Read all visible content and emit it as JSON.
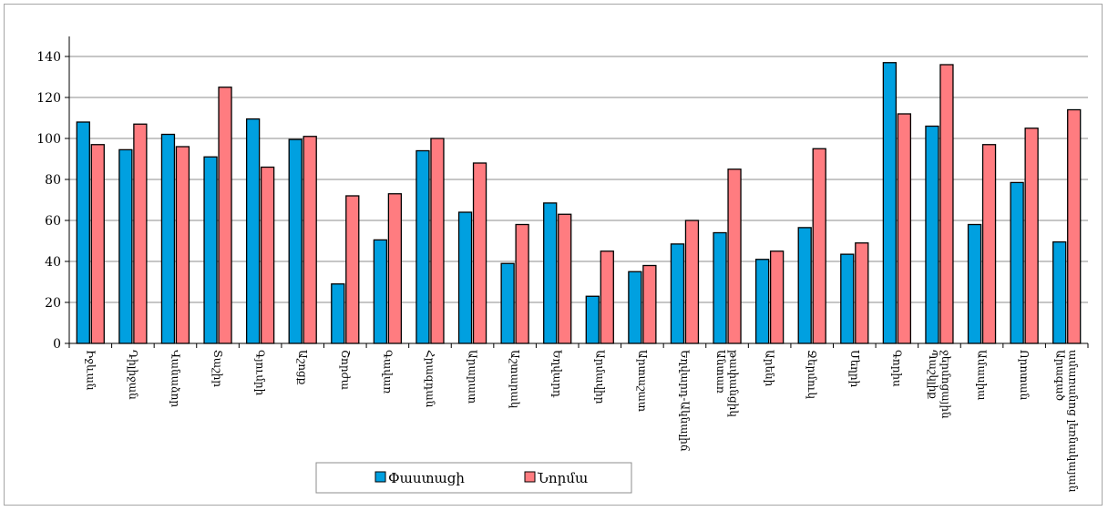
{
  "chart_data": {
    "type": "bar",
    "title": "",
    "xlabel": "",
    "ylabel": "",
    "ylim": [
      0,
      140
    ],
    "yticks": [
      0,
      20,
      40,
      60,
      80,
      100,
      120,
      140
    ],
    "grid": true,
    "legend_position": "bottom",
    "categories": [
      "Իջևան",
      "Դիլիջան",
      "Վանաձոր",
      "Տաշիր",
      "Գյումրի",
      "Աշոցք",
      "Շորժա",
      "Գավառ",
      "Հրազդան",
      "Արարատ",
      "Աշտարակ",
      "Եղվարդ",
      "Արմավիր",
      "Արտաշատ",
      "Եղվարդ-Ակնալիճ",
      "Անտառ թափանցիկ",
      "Արենի",
      "Ջերմուկ",
      "Մեղրի",
      "Գորիս",
      "Պաշկլիք ջերմոցային",
      "Ամասիա",
      "Որոտան",
      "Արագած ամառանոց լեռնակայան"
    ],
    "series": [
      {
        "name": "Փաստացի",
        "color": "#00a0e0",
        "values": [
          108,
          94.5,
          102,
          91,
          109.5,
          99.5,
          29,
          50.5,
          94,
          64,
          39,
          68.5,
          23,
          35,
          48.5,
          54,
          41,
          56.5,
          43.5,
          137,
          106,
          58,
          78.5,
          49.5
        ]
      },
      {
        "name": "Նորմա",
        "color": "#ff7c80",
        "values": [
          97,
          107,
          96,
          125,
          86,
          101,
          72,
          73,
          100,
          88,
          58,
          63,
          45,
          38,
          60,
          85,
          45,
          95,
          49,
          112,
          136,
          97,
          105,
          114
        ]
      }
    ]
  }
}
